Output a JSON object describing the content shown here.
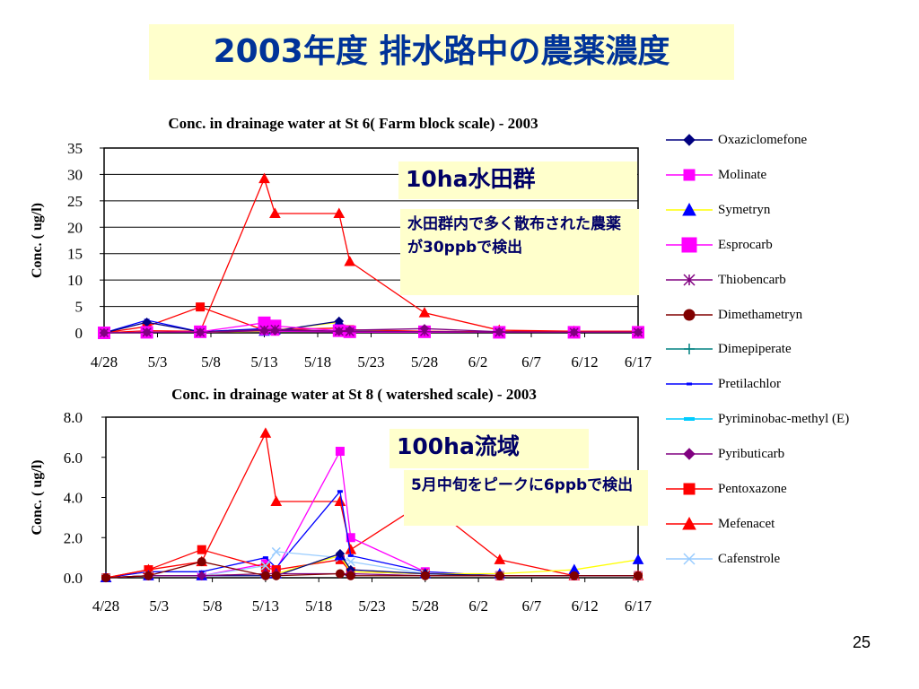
{
  "slide": {
    "title": "2003年度  排水路中の農薬濃度",
    "page_number": "25"
  },
  "callouts": {
    "top": {
      "heading": "10ha水田群",
      "body": "水田群内で多く散布された農薬が30ppbで検出"
    },
    "bottom": {
      "heading": "100ha流域",
      "body": "5月中旬をピークに6ppbで検出"
    }
  },
  "legend": [
    {
      "name": "Oxaziclomefone",
      "color": "#000080",
      "marker": "diamond"
    },
    {
      "name": "Molinate",
      "color": "#ff00ff",
      "marker": "square"
    },
    {
      "name": "Symetryn",
      "color": "#ffff00",
      "marker": "triangle",
      "marker_color": "#0000ff"
    },
    {
      "name": "Esprocarb",
      "color": "#ff00ff",
      "marker": "square-large"
    },
    {
      "name": "Thiobencarb",
      "color": "#800080",
      "marker": "star"
    },
    {
      "name": "Dimethametryn",
      "color": "#800000",
      "marker": "circle"
    },
    {
      "name": "Dimepiperate",
      "color": "#008080",
      "marker": "plus"
    },
    {
      "name": "Pretilachlor",
      "color": "#0000ff",
      "marker": "dash"
    },
    {
      "name": "Pyriminobac-methyl (E)",
      "color": "#00ccff",
      "marker": "dash-wide"
    },
    {
      "name": "Pyributicarb",
      "color": "#800080",
      "marker": "diamond"
    },
    {
      "name": "Pentoxazone",
      "color": "#ff0000",
      "marker": "square"
    },
    {
      "name": "Mefenacet",
      "color": "#ff0000",
      "marker": "triangle"
    },
    {
      "name": "Cafenstrole",
      "color": "#99ccff",
      "marker": "x"
    }
  ],
  "chart_data": [
    {
      "type": "line",
      "title": "Conc. in drainage water at St 6( Farm block scale) - 2003",
      "ylabel": "Conc. ( ug/l)",
      "ylim": [
        0,
        35
      ],
      "yticks": [
        "0",
        "5",
        "10",
        "15",
        "20",
        "25",
        "30",
        "35"
      ],
      "xlim": [
        0,
        50
      ],
      "xticks": [
        "4/28",
        "5/3",
        "5/8",
        "5/13",
        "5/18",
        "5/23",
        "5/28",
        "6/2",
        "6/7",
        "6/12",
        "6/17"
      ],
      "grid": "horizontal",
      "series": [
        {
          "name": "Mefenacet",
          "x": [
            0,
            4,
            9,
            15,
            16,
            22,
            23,
            30,
            37,
            44,
            50
          ],
          "y": [
            0,
            0.4,
            0.3,
            29.2,
            22.6,
            22.6,
            13.5,
            3.8,
            0.5,
            0.3,
            0.3
          ]
        },
        {
          "name": "Pentoxazone",
          "x": [
            0,
            4,
            9,
            15,
            16,
            22,
            23,
            30,
            37,
            44,
            50
          ],
          "y": [
            0,
            1.2,
            4.9,
            0.5,
            0.6,
            0.9,
            0.6,
            0.3,
            0.2,
            0.3,
            0.3
          ]
        },
        {
          "name": "Symetryn",
          "x": [
            0,
            4,
            9,
            15,
            16,
            22,
            23,
            30,
            37,
            44,
            50
          ],
          "y": [
            0,
            0.1,
            0.1,
            0.3,
            0.5,
            2.0,
            0.3,
            0.2,
            0.1,
            0.1,
            0.1
          ]
        },
        {
          "name": "Pretilachlor",
          "x": [
            0,
            4,
            9,
            15,
            16,
            22,
            23,
            30,
            37,
            44,
            50
          ],
          "y": [
            0,
            2.4,
            0.2,
            0.8,
            0.5,
            0.2,
            0.2,
            0.2,
            0.1,
            0.1,
            0.1
          ]
        },
        {
          "name": "Oxaziclomefone",
          "x": [
            0,
            4,
            9,
            15,
            16,
            22,
            23,
            30,
            37,
            44,
            50
          ],
          "y": [
            0,
            2.0,
            0.2,
            0.6,
            0.4,
            2.2,
            0.3,
            0.2,
            0.1,
            0.1,
            0.1
          ]
        },
        {
          "name": "Esprocarb",
          "x": [
            0,
            4,
            9,
            15,
            16,
            22,
            23,
            30,
            37,
            44,
            50
          ],
          "y": [
            0,
            0.1,
            0.2,
            1.9,
            1.3,
            0.4,
            0.2,
            0.2,
            0.1,
            0.1,
            0.1
          ]
        },
        {
          "name": "Molinate",
          "x": [
            0,
            4,
            9,
            15,
            16,
            22,
            23,
            30,
            37,
            44,
            50
          ],
          "y": [
            0,
            0.1,
            0.1,
            0.4,
            0.3,
            0.2,
            0.1,
            0.1,
            0.1,
            0.1,
            0.1
          ]
        },
        {
          "name": "Pyributicarb",
          "x": [
            0,
            4,
            9,
            15,
            16,
            22,
            23,
            30,
            37,
            44,
            50
          ],
          "y": [
            0,
            0.1,
            0.1,
            0.4,
            0.4,
            0.3,
            0.5,
            0.8,
            0.2,
            0.1,
            0.1
          ]
        },
        {
          "name": "Thiobencarb",
          "x": [
            0,
            4,
            9,
            15,
            16,
            22,
            23,
            30,
            37,
            44,
            50
          ],
          "y": [
            0,
            0.1,
            0.1,
            0.6,
            0.7,
            0.3,
            0.2,
            0.2,
            0.1,
            0.1,
            0.1
          ]
        }
      ]
    },
    {
      "type": "line",
      "title": "Conc. in drainage water at St 8 ( watershed scale) - 2003",
      "ylabel": "Conc. ( ug/l)",
      "ylim": [
        0,
        8
      ],
      "yticks": [
        "0.0",
        "2.0",
        "4.0",
        "6.0",
        "8.0"
      ],
      "xlim": [
        0,
        50
      ],
      "xticks": [
        "4/28",
        "5/3",
        "5/8",
        "5/13",
        "5/18",
        "5/23",
        "5/28",
        "6/2",
        "6/7",
        "6/12",
        "6/17"
      ],
      "grid": "none",
      "series": [
        {
          "name": "Mefenacet",
          "x": [
            0,
            4,
            9,
            15,
            16,
            22,
            23,
            30,
            37,
            44,
            50
          ],
          "y": [
            0,
            0.4,
            0.8,
            7.2,
            3.8,
            3.8,
            1.4,
            3.8,
            0.9,
            0.1,
            0.1
          ]
        },
        {
          "name": "Molinate",
          "x": [
            0,
            4,
            9,
            15,
            16,
            22,
            23,
            30,
            37,
            44,
            50
          ],
          "y": [
            0,
            0.1,
            0.1,
            0.7,
            0.4,
            6.3,
            2.0,
            0.3,
            0.1,
            0.1,
            0.1
          ]
        },
        {
          "name": "Pretilachlor",
          "x": [
            0,
            4,
            9,
            15,
            16,
            22,
            23,
            30,
            37,
            44,
            50
          ],
          "y": [
            0,
            0.3,
            0.3,
            1.0,
            0.5,
            4.3,
            1.1,
            0.3,
            0.1,
            0.1,
            0.1
          ]
        },
        {
          "name": "Pentoxazone",
          "x": [
            0,
            4,
            9,
            15,
            16,
            22,
            23,
            30,
            37,
            44,
            50
          ],
          "y": [
            0,
            0.4,
            1.4,
            0.5,
            0.4,
            0.9,
            0.3,
            0.2,
            0.1,
            0.1,
            0.1
          ]
        },
        {
          "name": "Cafenstrole",
          "x": [
            0,
            4,
            9,
            15,
            16,
            22,
            23,
            30,
            37,
            44,
            50
          ],
          "y": [
            0,
            0.1,
            0.1,
            0.6,
            1.3,
            1.0,
            0.8,
            0.2,
            0.1,
            0.1,
            0.1
          ]
        },
        {
          "name": "Symetryn",
          "x": [
            0,
            4,
            9,
            15,
            16,
            22,
            23,
            30,
            37,
            44,
            50
          ],
          "y": [
            0,
            0.1,
            0.1,
            0.2,
            0.2,
            1.1,
            0.3,
            0.2,
            0.2,
            0.4,
            0.9
          ]
        },
        {
          "name": "Oxaziclomefone",
          "x": [
            0,
            4,
            9,
            15,
            16,
            22,
            23,
            30,
            37,
            44,
            50
          ],
          "y": [
            0,
            0.1,
            0.1,
            0.1,
            0.1,
            1.2,
            0.4,
            0.2,
            0.1,
            0.1,
            0.1
          ]
        },
        {
          "name": "Pyributicarb",
          "x": [
            0,
            4,
            9,
            15,
            16,
            22,
            23,
            30,
            37,
            44,
            50
          ],
          "y": [
            0,
            0.1,
            0.1,
            0.2,
            0.2,
            0.2,
            0.2,
            0.1,
            0.1,
            0.1,
            0.1
          ]
        },
        {
          "name": "Dimethametryn",
          "x": [
            0,
            4,
            9,
            15,
            16,
            22,
            23,
            30,
            37,
            44,
            50
          ],
          "y": [
            0,
            0.1,
            0.8,
            0.1,
            0.1,
            0.2,
            0.1,
            0.1,
            0.1,
            0.1,
            0.1
          ]
        }
      ]
    }
  ]
}
